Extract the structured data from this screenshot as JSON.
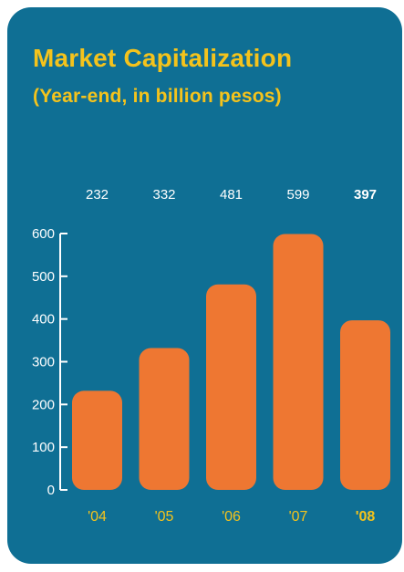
{
  "colors": {
    "background": "#0f6f94",
    "title": "#f4c31c",
    "bar": "#ee7732",
    "value_label": "#ffffff",
    "axis": "#ffffff",
    "category_label": "#f4c31c"
  },
  "chart_data": {
    "type": "bar",
    "title": "Market Capitalization",
    "subtitle": "(Year-end, in billion pesos)",
    "categories": [
      "'04",
      "'05",
      "'06",
      "'07",
      "'08"
    ],
    "values": [
      232,
      332,
      481,
      599,
      397
    ],
    "value_labels": [
      "232",
      "332",
      "481",
      "599",
      "397"
    ],
    "highlight_index": 4,
    "ylim": [
      0,
      600
    ],
    "yticks": [
      0,
      100,
      200,
      300,
      400,
      500,
      600
    ],
    "ytick_labels": [
      "0",
      "100",
      "200",
      "300",
      "400",
      "500",
      "600"
    ],
    "xlabel": "",
    "ylabel": "",
    "grid": false,
    "legend": "none"
  }
}
